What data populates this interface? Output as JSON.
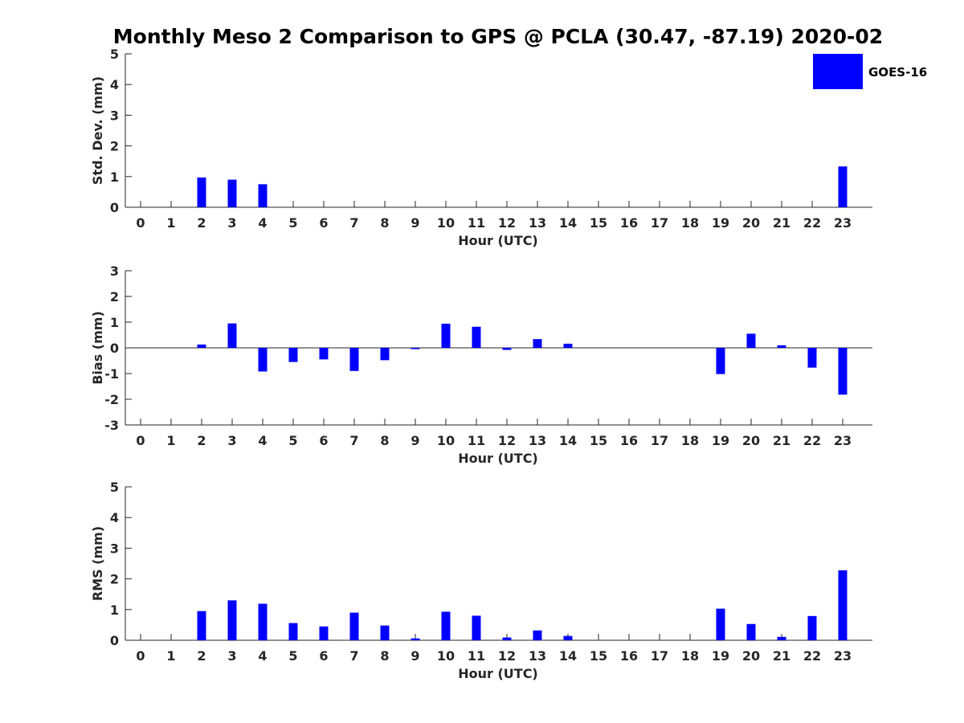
{
  "colors": {
    "bar": "#0000ff",
    "axis": "#262626",
    "background": "#ffffff"
  },
  "chart_data": {
    "type": "bar",
    "title": "Monthly Meso 2 Comparison to GPS @ PCLA (30.47, -87.19) 2020-02",
    "legend": {
      "entries": [
        "GOES-16"
      ],
      "placement": "top-right"
    },
    "grid": false,
    "panels": [
      {
        "ylabel": "Std. Dev. (mm)",
        "xlabel": "Hour (UTC)",
        "ylim": [
          0,
          5
        ],
        "yticks": [
          0,
          1,
          2,
          3,
          4,
          5
        ],
        "categories": [
          "0",
          "1",
          "2",
          "3",
          "4",
          "5",
          "6",
          "7",
          "8",
          "9",
          "10",
          "11",
          "12",
          "13",
          "14",
          "15",
          "16",
          "17",
          "18",
          "19",
          "20",
          "21",
          "22",
          "23"
        ],
        "series": [
          {
            "name": "GOES-16",
            "values": [
              null,
              null,
              0.97,
              0.9,
              0.75,
              null,
              null,
              null,
              null,
              null,
              null,
              null,
              null,
              null,
              null,
              null,
              null,
              null,
              null,
              null,
              null,
              null,
              null,
              1.33
            ]
          }
        ]
      },
      {
        "ylabel": "Bias (mm)",
        "xlabel": "Hour (UTC)",
        "ylim": [
          -3,
          3
        ],
        "yticks": [
          -3,
          -2,
          -1,
          0,
          1,
          2,
          3
        ],
        "categories": [
          "0",
          "1",
          "2",
          "3",
          "4",
          "5",
          "6",
          "7",
          "8",
          "9",
          "10",
          "11",
          "12",
          "13",
          "14",
          "15",
          "16",
          "17",
          "18",
          "19",
          "20",
          "21",
          "22",
          "23"
        ],
        "series": [
          {
            "name": "GOES-16",
            "values": [
              null,
              null,
              0.13,
              0.95,
              -0.92,
              -0.55,
              -0.45,
              -0.9,
              -0.48,
              -0.05,
              0.94,
              0.82,
              -0.08,
              0.34,
              0.16,
              null,
              null,
              null,
              null,
              -1.02,
              0.55,
              0.1,
              -0.77,
              -1.82
            ]
          }
        ]
      },
      {
        "ylabel": "RMS (mm)",
        "xlabel": "Hour (UTC)",
        "ylim": [
          0,
          5
        ],
        "yticks": [
          0,
          1,
          2,
          3,
          4,
          5
        ],
        "categories": [
          "0",
          "1",
          "2",
          "3",
          "4",
          "5",
          "6",
          "7",
          "8",
          "9",
          "10",
          "11",
          "12",
          "13",
          "14",
          "15",
          "16",
          "17",
          "18",
          "19",
          "20",
          "21",
          "22",
          "23"
        ],
        "series": [
          {
            "name": "GOES-16",
            "values": [
              null,
              null,
              0.95,
              1.3,
              1.19,
              0.56,
              0.45,
              0.9,
              0.48,
              0.06,
              0.93,
              0.8,
              0.09,
              0.32,
              0.14,
              null,
              null,
              null,
              null,
              1.03,
              0.53,
              0.11,
              0.79,
              2.28
            ]
          }
        ]
      }
    ]
  }
}
